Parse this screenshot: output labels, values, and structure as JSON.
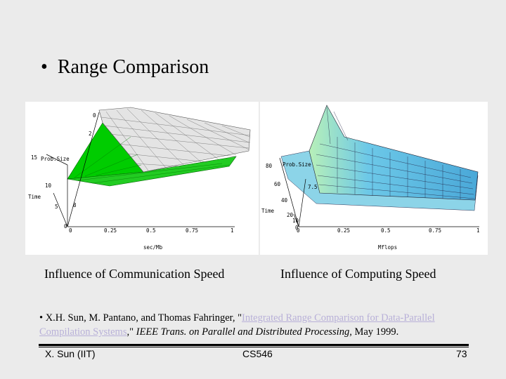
{
  "slide": {
    "title": "Range Comparison",
    "bullet": "•"
  },
  "figures": {
    "left": {
      "caption": "Influence of Communication Speed",
      "axis_title_x": "sec/Mb",
      "axis_title_probsize": "Prob.Size",
      "axis_title_time": "Time",
      "ticks_x": [
        "0",
        "0.25",
        "0.5",
        "0.75",
        "1"
      ],
      "ticks_time": [
        "15",
        "10",
        "5",
        "0"
      ],
      "ticks_probsize": [
        "0",
        "2",
        "8"
      ],
      "colors": {
        "surface": "#00cc00",
        "mesh": "#e8e8e8"
      }
    },
    "right": {
      "caption": "Influence of Computing Speed",
      "axis_title_x": "Mflops",
      "axis_title_probsize": "Prob.Size",
      "axis_title_time": "Time",
      "ticks_x": [
        "0",
        "0.25",
        "0.5",
        "0.75",
        "1"
      ],
      "ticks_time": [
        "80",
        "60",
        "40",
        "20",
        "0"
      ],
      "ticks_probsize": [
        "7.5",
        "10"
      ],
      "colors": {
        "surface": "#5ab8e0",
        "surface_light": "#b8f0c0"
      }
    }
  },
  "reference": {
    "bullet": "•",
    "authors": "X.H. Sun, M. Pantano, and Thomas Fahringer, \"",
    "link_text": "Integrated Range Comparison for Data-Parallel Compilation Systems",
    "after_link": ",\" ",
    "venue": "IEEE Trans. on Parallel and Distributed Processing",
    "date": ", May 1999."
  },
  "footer": {
    "author": "X. Sun (IIT)",
    "course": "CS546",
    "page": "73"
  }
}
